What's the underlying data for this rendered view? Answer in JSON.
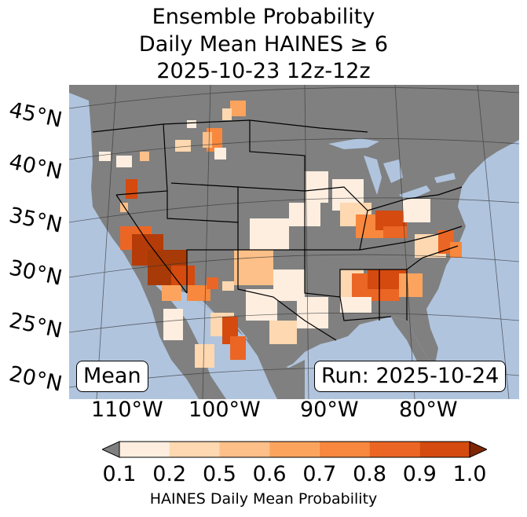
{
  "title": {
    "line1": "Ensemble Probability",
    "line2": "Daily Mean HAINES ≥ 6",
    "line3": "2025-10-23 12z-12z"
  },
  "axes": {
    "lat_labels": [
      "45°N",
      "40°N",
      "35°N",
      "30°N",
      "25°N",
      "20°N"
    ],
    "lon_labels": [
      "110°W",
      "100°W",
      "90°W",
      "80°W"
    ]
  },
  "boxes": {
    "stat": "Mean",
    "run": "Run: 2025-10-24"
  },
  "colorbar": {
    "ticks": [
      "0.1",
      "0.2",
      "0.5",
      "0.6",
      "0.7",
      "0.8",
      "0.9",
      "1.0"
    ],
    "label": "HAINES Daily Mean Probability",
    "colors": [
      "#fdeee0",
      "#fdd8b0",
      "#fdc088",
      "#fca45e",
      "#f7883e",
      "#eb6624",
      "#d44a0f"
    ],
    "under_color": "#808080",
    "over_color": "#7f2704"
  },
  "colors": {
    "ocean": "#b0c4de",
    "land": "#808080",
    "lakes": "#b0c4de"
  }
}
